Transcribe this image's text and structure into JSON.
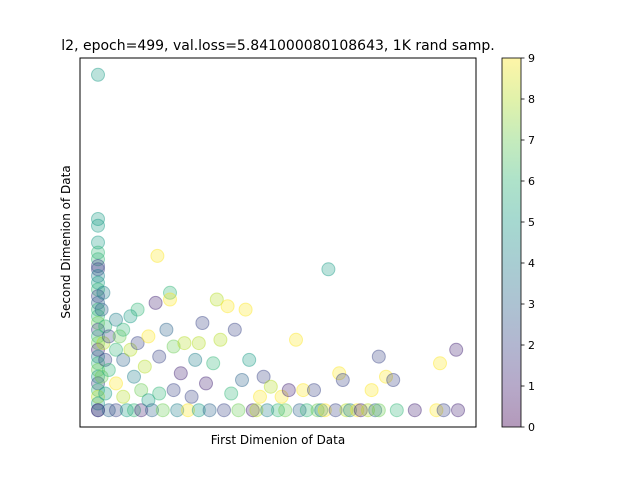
{
  "chart_data": {
    "type": "scatter",
    "title": "l2, epoch=499, val.loss=5.841000080108643, 1K rand samp.",
    "xlabel": "First Dimenion of Data",
    "ylabel": "Second Dimenion of Data",
    "x_ticks_visible": false,
    "y_ticks_visible": false,
    "xlim": [
      -0.05,
      1.05
    ],
    "ylim": [
      -0.05,
      1.05
    ],
    "grid": false,
    "marker_alpha": 0.3,
    "colormap": "viridis",
    "colorbar": {
      "ticks": [
        "0",
        "1",
        "2",
        "3",
        "4",
        "5",
        "6",
        "7",
        "8",
        "9"
      ],
      "min": 0,
      "max": 9
    },
    "points": [
      [
        0.0,
        1.0,
        5
      ],
      [
        0.0,
        0.57,
        5
      ],
      [
        0.0,
        0.55,
        5
      ],
      [
        0.0,
        0.5,
        5
      ],
      [
        0.0,
        0.47,
        6
      ],
      [
        0.0,
        0.45,
        6
      ],
      [
        0.0,
        0.43,
        2
      ],
      [
        0.0,
        0.42,
        2
      ],
      [
        0.0,
        0.4,
        4
      ],
      [
        0.0,
        0.38,
        5
      ],
      [
        0.0,
        0.36,
        6
      ],
      [
        0.0,
        0.34,
        2
      ],
      [
        0.0,
        0.32,
        3
      ],
      [
        0.0,
        0.3,
        6
      ],
      [
        0.0,
        0.28,
        6
      ],
      [
        0.0,
        0.26,
        7
      ],
      [
        0.0,
        0.24,
        2
      ],
      [
        0.0,
        0.22,
        6
      ],
      [
        0.0,
        0.2,
        7
      ],
      [
        0.0,
        0.18,
        1
      ],
      [
        0.0,
        0.16,
        4
      ],
      [
        0.0,
        0.14,
        6
      ],
      [
        0.0,
        0.12,
        7
      ],
      [
        0.0,
        0.1,
        5
      ],
      [
        0.0,
        0.08,
        2
      ],
      [
        0.0,
        0.06,
        6
      ],
      [
        0.0,
        0.04,
        8
      ],
      [
        0.0,
        0.02,
        5
      ],
      [
        0.0,
        0.0,
        3
      ],
      [
        0.0,
        0.0,
        1
      ],
      [
        0.015,
        0.35,
        4
      ],
      [
        0.01,
        0.3,
        3
      ],
      [
        0.02,
        0.25,
        6
      ],
      [
        0.015,
        0.2,
        8
      ],
      [
        0.02,
        0.15,
        2
      ],
      [
        0.01,
        0.1,
        7
      ],
      [
        0.02,
        0.05,
        5
      ],
      [
        0.03,
        0.22,
        2
      ],
      [
        0.03,
        0.12,
        6
      ],
      [
        0.03,
        0.0,
        3
      ],
      [
        0.05,
        0.27,
        4
      ],
      [
        0.05,
        0.18,
        6
      ],
      [
        0.05,
        0.08,
        9
      ],
      [
        0.05,
        0.0,
        2
      ],
      [
        0.06,
        0.22,
        7
      ],
      [
        0.07,
        0.24,
        6
      ],
      [
        0.07,
        0.15,
        3
      ],
      [
        0.07,
        0.04,
        8
      ],
      [
        0.08,
        0.0,
        5
      ],
      [
        0.09,
        0.28,
        5
      ],
      [
        0.09,
        0.18,
        8
      ],
      [
        0.1,
        0.1,
        4
      ],
      [
        0.1,
        0.0,
        6
      ],
      [
        0.11,
        0.3,
        6
      ],
      [
        0.11,
        0.2,
        2
      ],
      [
        0.12,
        0.06,
        7
      ],
      [
        0.12,
        0.0,
        1
      ],
      [
        0.13,
        0.13,
        8
      ],
      [
        0.14,
        0.22,
        9
      ],
      [
        0.14,
        0.03,
        5
      ],
      [
        0.15,
        0.0,
        3
      ],
      [
        0.16,
        0.32,
        1
      ],
      [
        0.165,
        0.46,
        9
      ],
      [
        0.17,
        0.16,
        2
      ],
      [
        0.17,
        0.05,
        6
      ],
      [
        0.18,
        0.0,
        7
      ],
      [
        0.19,
        0.24,
        3
      ],
      [
        0.2,
        0.35,
        6
      ],
      [
        0.2,
        0.33,
        9
      ],
      [
        0.21,
        0.19,
        7
      ],
      [
        0.21,
        0.06,
        2
      ],
      [
        0.22,
        0.0,
        4
      ],
      [
        0.23,
        0.11,
        1
      ],
      [
        0.24,
        0.2,
        8
      ],
      [
        0.25,
        0.0,
        9
      ],
      [
        0.26,
        0.04,
        2
      ],
      [
        0.27,
        0.15,
        4
      ],
      [
        0.28,
        0.2,
        8
      ],
      [
        0.28,
        0.0,
        5
      ],
      [
        0.29,
        0.26,
        2
      ],
      [
        0.3,
        0.08,
        1
      ],
      [
        0.31,
        0.0,
        3
      ],
      [
        0.32,
        0.14,
        6
      ],
      [
        0.33,
        0.33,
        8
      ],
      [
        0.34,
        0.21,
        8
      ],
      [
        0.35,
        0.0,
        2
      ],
      [
        0.36,
        0.31,
        9
      ],
      [
        0.37,
        0.05,
        6
      ],
      [
        0.38,
        0.24,
        2
      ],
      [
        0.39,
        0.0,
        7
      ],
      [
        0.4,
        0.09,
        3
      ],
      [
        0.41,
        0.3,
        9
      ],
      [
        0.42,
        0.15,
        5
      ],
      [
        0.43,
        0.0,
        1
      ],
      [
        0.44,
        0.0,
        8
      ],
      [
        0.45,
        0.04,
        9
      ],
      [
        0.46,
        0.1,
        2
      ],
      [
        0.47,
        0.0,
        4
      ],
      [
        0.48,
        0.07,
        8
      ],
      [
        0.5,
        0.0,
        6
      ],
      [
        0.51,
        0.04,
        9
      ],
      [
        0.52,
        0.0,
        7
      ],
      [
        0.53,
        0.06,
        1
      ],
      [
        0.55,
        0.21,
        9
      ],
      [
        0.56,
        0.0,
        3
      ],
      [
        0.57,
        0.06,
        9
      ],
      [
        0.58,
        0.0,
        6
      ],
      [
        0.6,
        0.06,
        2
      ],
      [
        0.61,
        0.0,
        7
      ],
      [
        0.62,
        0.0,
        4
      ],
      [
        0.63,
        0.0,
        9
      ],
      [
        0.64,
        0.42,
        5
      ],
      [
        0.66,
        0.0,
        2
      ],
      [
        0.67,
        0.11,
        9
      ],
      [
        0.68,
        0.09,
        2
      ],
      [
        0.69,
        0.0,
        8
      ],
      [
        0.7,
        0.0,
        4
      ],
      [
        0.72,
        0.0,
        9
      ],
      [
        0.73,
        0.0,
        1
      ],
      [
        0.75,
        0.0,
        8
      ],
      [
        0.76,
        0.06,
        9
      ],
      [
        0.77,
        0.0,
        3
      ],
      [
        0.78,
        0.16,
        2
      ],
      [
        0.78,
        0.0,
        7
      ],
      [
        0.8,
        0.1,
        9
      ],
      [
        0.82,
        0.09,
        2
      ],
      [
        0.83,
        0.0,
        6
      ],
      [
        0.88,
        0.0,
        1
      ],
      [
        0.94,
        0.0,
        9
      ],
      [
        0.95,
        0.14,
        9
      ],
      [
        0.96,
        0.0,
        2
      ],
      [
        0.995,
        0.18,
        1
      ],
      [
        1.0,
        0.0,
        1
      ]
    ]
  }
}
